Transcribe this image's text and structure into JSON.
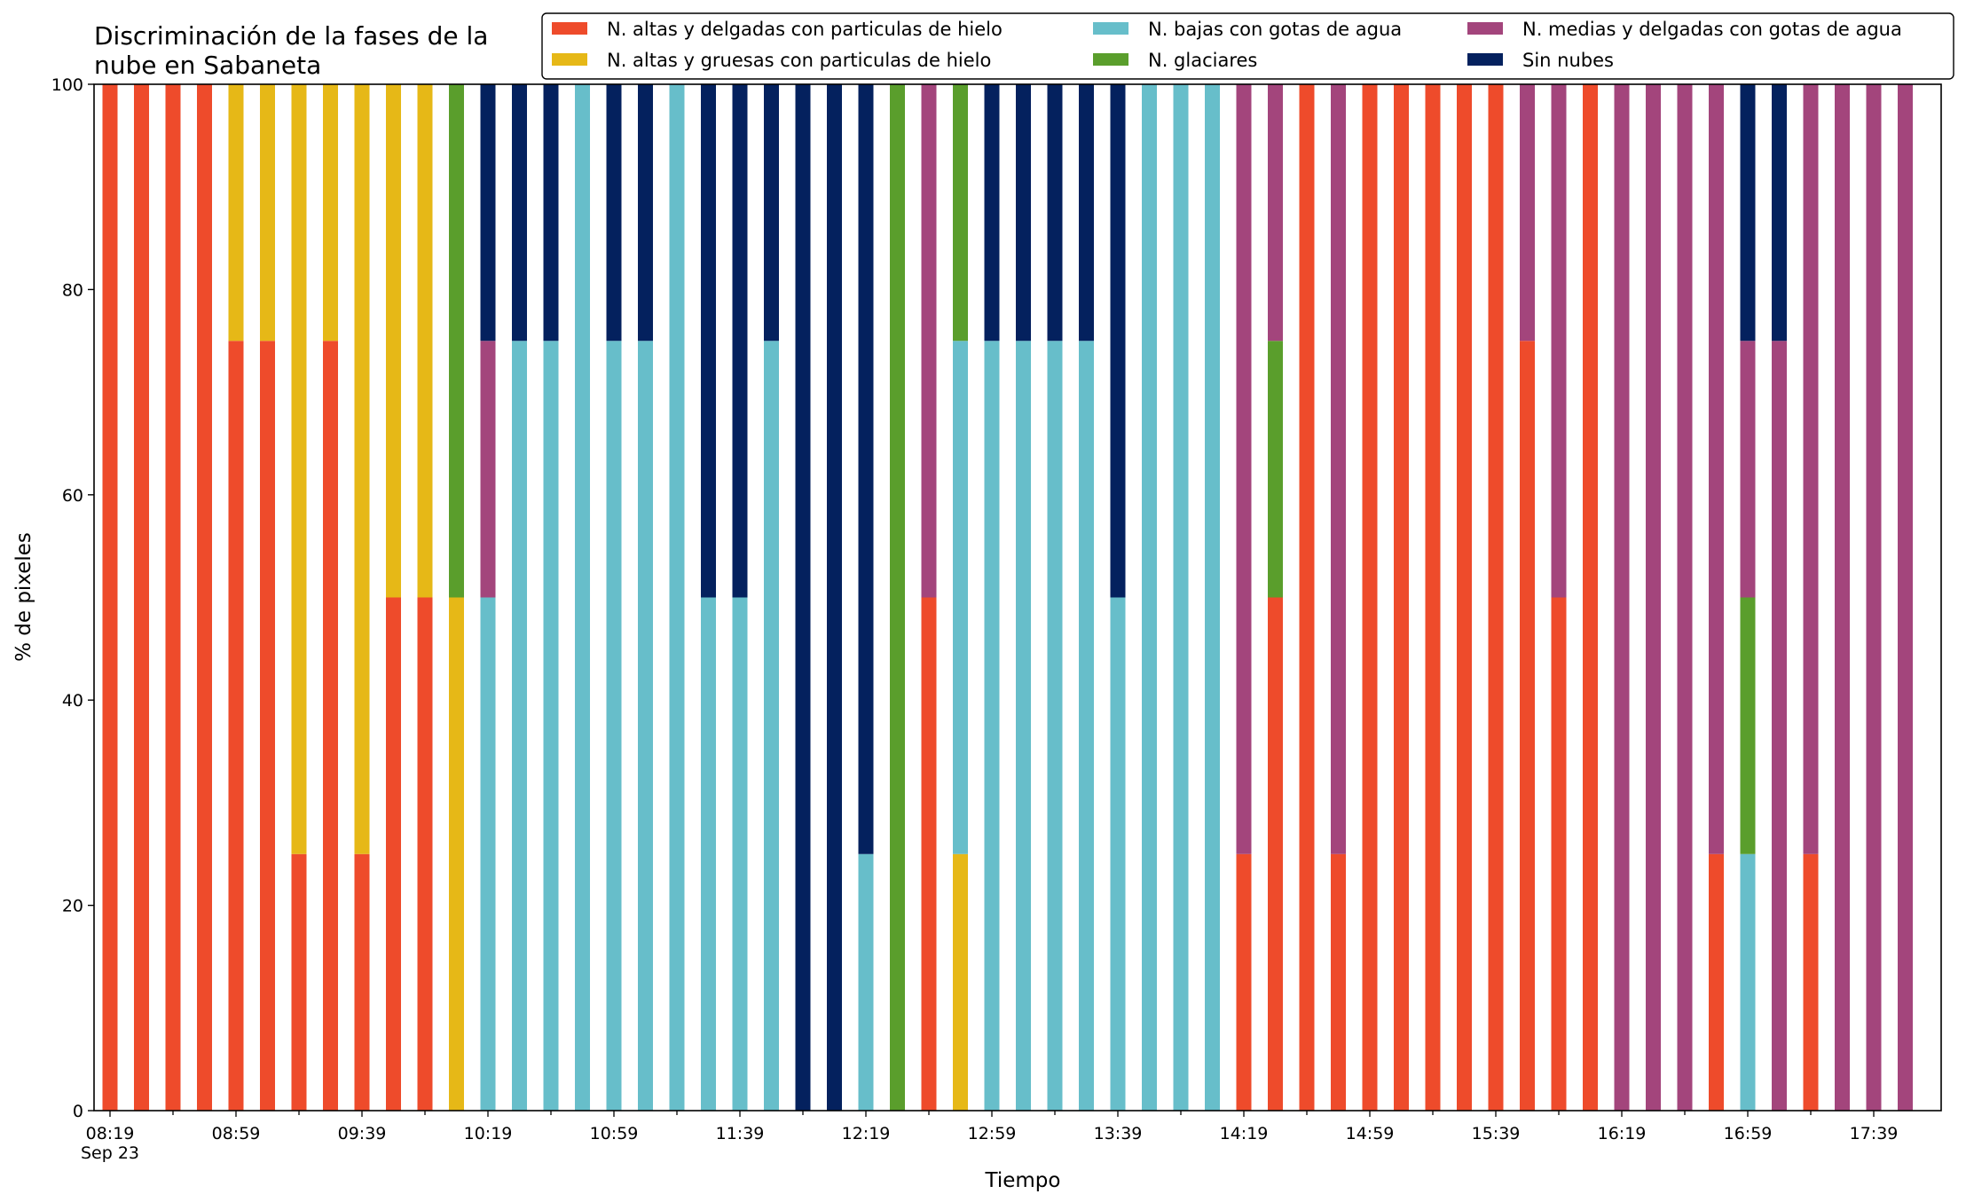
{
  "chart_data": {
    "type": "bar",
    "stacked": true,
    "title_line1": "Discriminación de la fases de la",
    "title_line2": "nube en Sabaneta",
    "xlabel": "Tiempo",
    "ylabel": "% de pixeles",
    "ylim": [
      0,
      100
    ],
    "y_ticks": [
      "0",
      "20",
      "40",
      "60",
      "80",
      "100"
    ],
    "x_tick_labels": [
      "08:19",
      "08:59",
      "09:39",
      "10:19",
      "10:59",
      "11:39",
      "12:19",
      "12:59",
      "13:39",
      "14:19",
      "14:59",
      "15:39",
      "16:19",
      "16:59",
      "17:39"
    ],
    "x_date_label": "Sep 23",
    "grid": false,
    "legend_position": "top-right",
    "x_interval_minutes": 10,
    "categories": [
      "08:19",
      "08:29",
      "08:39",
      "08:49",
      "08:59",
      "09:09",
      "09:19",
      "09:29",
      "09:39",
      "09:49",
      "09:59",
      "10:09",
      "10:19",
      "10:29",
      "10:39",
      "10:49",
      "10:59",
      "11:09",
      "11:19",
      "11:29",
      "11:39",
      "11:49",
      "11:59",
      "12:09",
      "12:19",
      "12:29",
      "12:39",
      "12:49",
      "12:59",
      "13:09",
      "13:19",
      "13:29",
      "13:39",
      "13:49",
      "13:59",
      "14:09",
      "14:19",
      "14:29",
      "14:39",
      "14:49",
      "14:59",
      "15:09",
      "15:19",
      "15:29",
      "15:39",
      "15:49",
      "15:59",
      "16:09",
      "16:19",
      "16:29",
      "16:39",
      "16:49",
      "16:59",
      "17:09",
      "17:19",
      "17:29",
      "17:39",
      "17:49"
    ],
    "series": [
      {
        "name": "N. altas y delgadas con particulas de hielo",
        "color": "#EE4B2B",
        "values": [
          100,
          100,
          100,
          100,
          75,
          75,
          25,
          75,
          25,
          50,
          50,
          0,
          0,
          0,
          0,
          0,
          0,
          0,
          0,
          0,
          0,
          0,
          0,
          0,
          0,
          0,
          50,
          0,
          0,
          0,
          0,
          0,
          0,
          0,
          0,
          0,
          25,
          50,
          100,
          25,
          100,
          100,
          100,
          100,
          100,
          75,
          50,
          100,
          0,
          0,
          0,
          25,
          0,
          0,
          25,
          0,
          0,
          0
        ]
      },
      {
        "name": "N. altas y gruesas con particulas de hielo",
        "color": "#E6B817",
        "values": [
          0,
          0,
          0,
          0,
          25,
          25,
          75,
          25,
          75,
          50,
          50,
          50,
          0,
          0,
          0,
          0,
          0,
          0,
          0,
          0,
          0,
          0,
          0,
          0,
          0,
          0,
          0,
          25,
          0,
          0,
          0,
          0,
          0,
          0,
          0,
          0,
          0,
          0,
          0,
          0,
          0,
          0,
          0,
          0,
          0,
          0,
          0,
          0,
          0,
          0,
          0,
          0,
          0,
          0,
          0,
          0,
          0,
          0
        ]
      },
      {
        "name": "N. bajas con gotas de agua",
        "color": "#67BECA",
        "values": [
          0,
          0,
          0,
          0,
          0,
          0,
          0,
          0,
          0,
          0,
          0,
          0,
          50,
          75,
          75,
          100,
          75,
          75,
          100,
          50,
          50,
          75,
          0,
          0,
          25,
          0,
          0,
          50,
          75,
          75,
          75,
          75,
          50,
          100,
          100,
          100,
          0,
          0,
          0,
          0,
          0,
          0,
          0,
          0,
          0,
          0,
          0,
          0,
          0,
          0,
          0,
          0,
          25,
          0,
          0,
          0,
          0,
          0
        ]
      },
      {
        "name": "N. glaciares",
        "color": "#5A9E2C",
        "values": [
          0,
          0,
          0,
          0,
          0,
          0,
          0,
          0,
          0,
          0,
          0,
          50,
          0,
          0,
          0,
          0,
          0,
          0,
          0,
          0,
          0,
          0,
          0,
          0,
          0,
          100,
          0,
          25,
          0,
          0,
          0,
          0,
          0,
          0,
          0,
          0,
          0,
          25,
          0,
          0,
          0,
          0,
          0,
          0,
          0,
          0,
          0,
          0,
          0,
          0,
          0,
          0,
          25,
          0,
          0,
          0,
          0,
          0
        ]
      },
      {
        "name": "N. medias y delgadas con gotas de agua",
        "color": "#A3457C",
        "values": [
          0,
          0,
          0,
          0,
          0,
          0,
          0,
          0,
          0,
          0,
          0,
          0,
          25,
          0,
          0,
          0,
          0,
          0,
          0,
          0,
          0,
          0,
          0,
          0,
          0,
          0,
          50,
          0,
          0,
          0,
          0,
          0,
          0,
          0,
          0,
          0,
          75,
          25,
          0,
          75,
          0,
          0,
          0,
          0,
          0,
          25,
          50,
          0,
          100,
          100,
          100,
          75,
          25,
          75,
          75,
          100,
          100,
          100
        ]
      },
      {
        "name": "Sin nubes",
        "color": "#04215E",
        "values": [
          0,
          0,
          0,
          0,
          0,
          0,
          0,
          0,
          0,
          0,
          0,
          0,
          25,
          25,
          25,
          0,
          25,
          25,
          0,
          50,
          50,
          25,
          100,
          100,
          75,
          0,
          0,
          0,
          25,
          25,
          25,
          25,
          50,
          0,
          0,
          0,
          0,
          0,
          0,
          0,
          0,
          0,
          0,
          0,
          0,
          0,
          0,
          0,
          0,
          0,
          0,
          0,
          25,
          25,
          0,
          0,
          0,
          0
        ]
      }
    ]
  }
}
